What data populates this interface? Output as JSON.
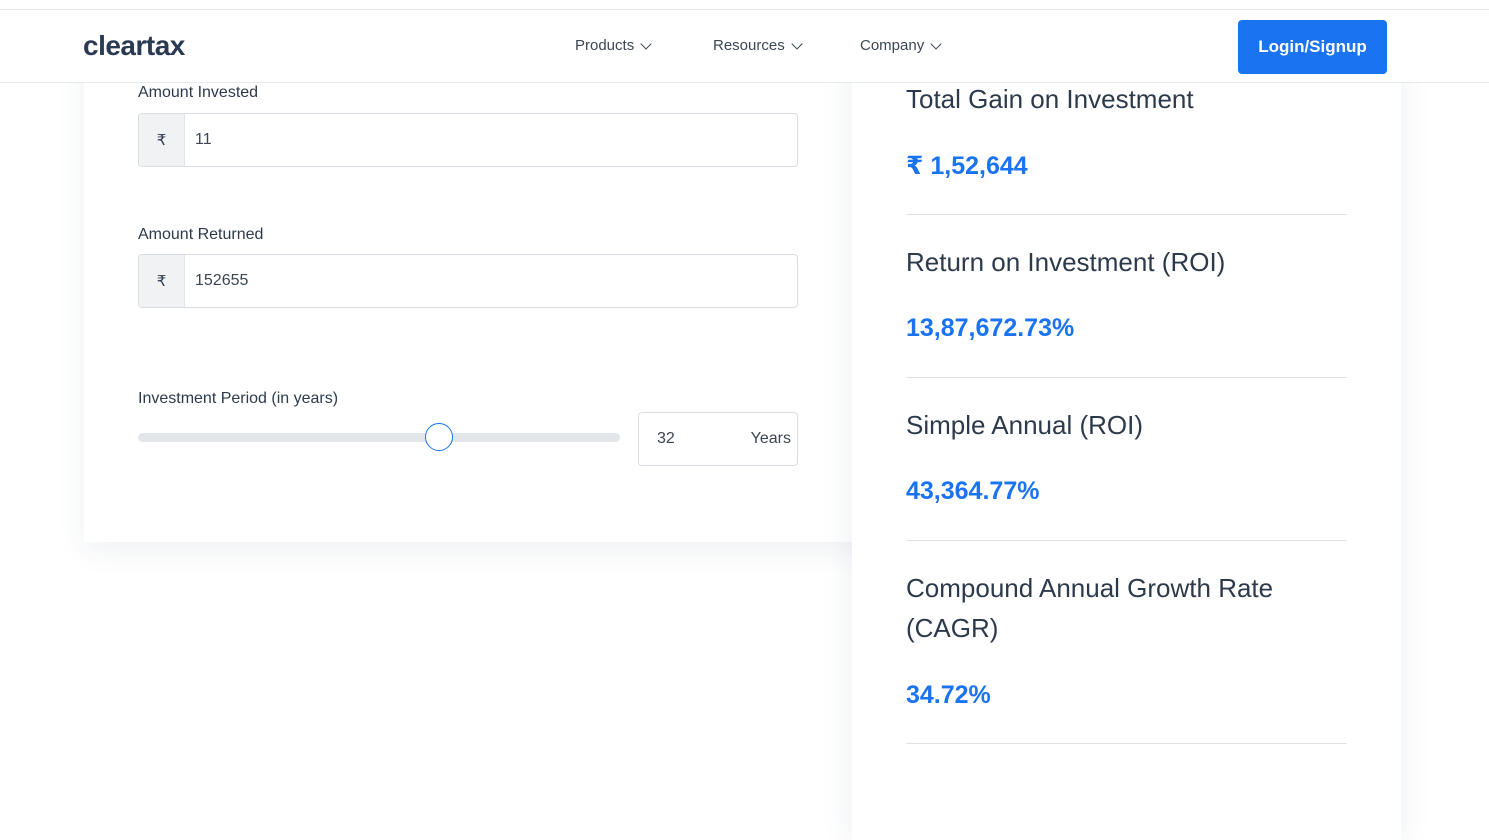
{
  "header": {
    "logo": "cleartax",
    "nav": [
      {
        "label": "Products"
      },
      {
        "label": "Resources"
      },
      {
        "label": "Company"
      }
    ],
    "login_label": "Login/Signup"
  },
  "form": {
    "currency_symbol": "₹",
    "amount_invested": {
      "label": "Amount Invested",
      "value": "11"
    },
    "amount_returned": {
      "label": "Amount Returned",
      "value": "152655"
    },
    "period": {
      "label": "Investment Period (in years)",
      "value": "32",
      "unit": "Years",
      "slider_fraction": 0.625
    }
  },
  "results": [
    {
      "title": "Total Gain on Investment",
      "value": "₹ 1,52,644"
    },
    {
      "title": "Return on Investment (ROI)",
      "value": "13,87,672.73%"
    },
    {
      "title": "Simple Annual (ROI)",
      "value": "43,364.77%"
    },
    {
      "title": "Compound Annual Growth Rate (CAGR)",
      "value": "34.72%"
    }
  ],
  "colors": {
    "accent": "#1a73f0",
    "text": "#2d3a4b",
    "border": "#d8dde3"
  }
}
